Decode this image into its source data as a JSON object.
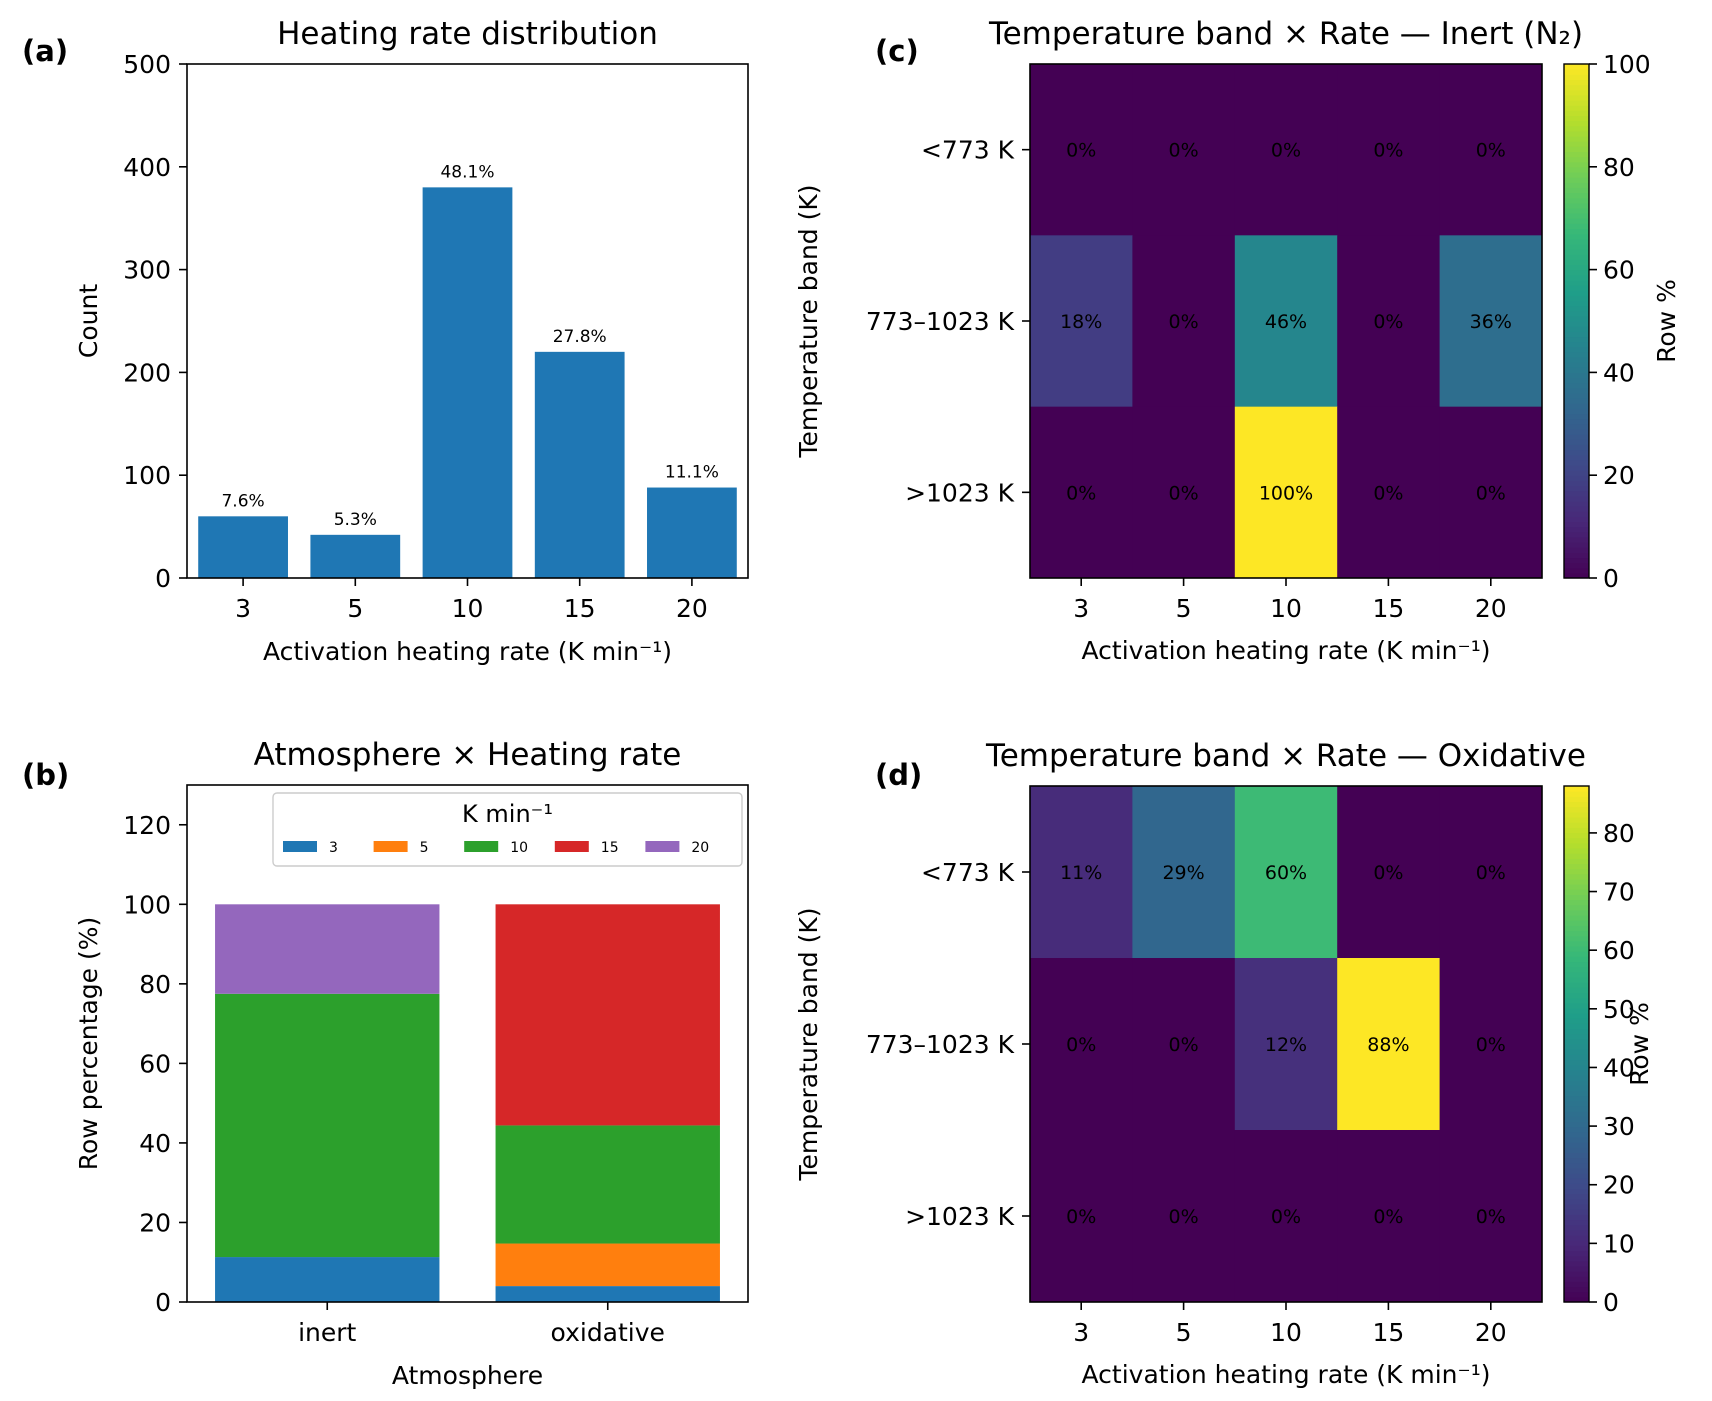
{
  "chart_data": [
    {
      "id": "a",
      "panel_label": "(a)",
      "type": "bar",
      "title": "Heating rate distribution",
      "xlabel": "Activation heating rate (K min⁻¹)",
      "ylabel": "Count",
      "categories": [
        "3",
        "5",
        "10",
        "15",
        "20"
      ],
      "values": [
        60,
        42,
        380,
        220,
        88
      ],
      "data_labels": [
        "7.6%",
        "5.3%",
        "48.1%",
        "27.8%",
        "11.1%"
      ],
      "ylim": [
        0,
        500
      ],
      "yticks": [
        0,
        100,
        200,
        300,
        400,
        500
      ],
      "color": "#1f77b4",
      "grid": false
    },
    {
      "id": "b",
      "panel_label": "(b)",
      "type": "bar",
      "stacked": true,
      "title": "Atmosphere × Heating rate",
      "xlabel": "Atmosphere",
      "ylabel": "Row percentage (%)",
      "categories": [
        "inert",
        "oxidative"
      ],
      "ylim": [
        0,
        130
      ],
      "yticks": [
        0,
        20,
        40,
        60,
        80,
        100,
        120
      ],
      "legend_title": "K min⁻¹",
      "legend_placement": "upper center",
      "series": [
        {
          "name": "3",
          "color": "#1f77b4",
          "values": [
            11.3,
            4.0
          ]
        },
        {
          "name": "5",
          "color": "#ff7f0e",
          "values": [
            0,
            10.7
          ]
        },
        {
          "name": "10",
          "color": "#2ca02c",
          "values": [
            66.2,
            29.7
          ]
        },
        {
          "name": "15",
          "color": "#d62728",
          "values": [
            0,
            55.6
          ]
        },
        {
          "name": "20",
          "color": "#9467bd",
          "values": [
            22.5,
            0
          ]
        }
      ],
      "grid": false
    },
    {
      "id": "c",
      "panel_label": "(c)",
      "type": "heatmap",
      "title": "Temperature band × Rate — Inert (N₂)",
      "xlabel": "Activation heating rate (K min⁻¹)",
      "ylabel": "Temperature band (K)",
      "x": [
        "3",
        "5",
        "10",
        "15",
        "20"
      ],
      "y": [
        "<773 K",
        "773–1023 K",
        ">1023 K"
      ],
      "values": [
        [
          0,
          0,
          0,
          0,
          0
        ],
        [
          18,
          0,
          46,
          0,
          36
        ],
        [
          0,
          0,
          100,
          0,
          0
        ]
      ],
      "cell_labels": [
        [
          "0%",
          "0%",
          "0%",
          "0%",
          "0%"
        ],
        [
          "18%",
          "0%",
          "46%",
          "0%",
          "36%"
        ],
        [
          "0%",
          "0%",
          "100%",
          "0%",
          "0%"
        ]
      ],
      "colorbar_label": "Row %",
      "colorbar_range": [
        0,
        100
      ],
      "colorbar_ticks": [
        0,
        20,
        40,
        60,
        80,
        100
      ],
      "colormap": "viridis"
    },
    {
      "id": "d",
      "panel_label": "(d)",
      "type": "heatmap",
      "title": "Temperature band × Rate — Oxidative",
      "xlabel": "Activation heating rate (K min⁻¹)",
      "ylabel": "Temperature band (K)",
      "x": [
        "3",
        "5",
        "10",
        "15",
        "20"
      ],
      "y": [
        "<773 K",
        "773–1023 K",
        ">1023 K"
      ],
      "values": [
        [
          11,
          29,
          60,
          0,
          0
        ],
        [
          0,
          0,
          12,
          88,
          0
        ],
        [
          0,
          0,
          0,
          0,
          0
        ]
      ],
      "cell_labels": [
        [
          "11%",
          "29%",
          "60%",
          "0%",
          "0%"
        ],
        [
          "0%",
          "0%",
          "12%",
          "88%",
          "0%"
        ],
        [
          "0%",
          "0%",
          "0%",
          "0%",
          "0%"
        ]
      ],
      "colorbar_label": "Row %",
      "colorbar_range": [
        0,
        88
      ],
      "colorbar_ticks": [
        0,
        10,
        20,
        30,
        40,
        50,
        60,
        70,
        80
      ],
      "colormap": "viridis"
    }
  ]
}
